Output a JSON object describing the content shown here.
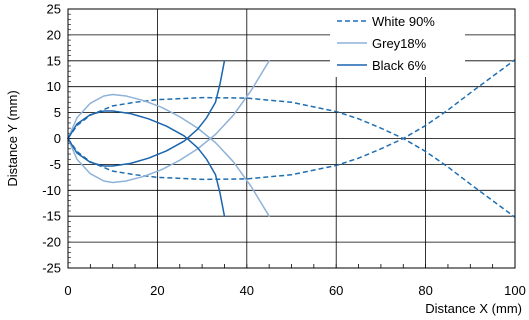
{
  "chart_data": {
    "type": "line",
    "xlabel": "Distance X (mm)",
    "ylabel": "Distance Y (mm)",
    "xlim": [
      0,
      100
    ],
    "ylim": [
      -25,
      25
    ],
    "xticks": [
      0,
      20,
      40,
      60,
      80,
      100
    ],
    "yticks": [
      -25,
      -20,
      -15,
      -10,
      -5,
      0,
      5,
      10,
      15,
      20,
      25
    ],
    "grid": true,
    "legend_position": "top-right",
    "colors": {
      "white": "#1f6fb2",
      "grey": "#8fb3d8",
      "black": "#1a65ad"
    },
    "series": [
      {
        "name": "White 90%",
        "key": "white",
        "style": "dashed",
        "segments": [
          {
            "x": [
              0,
              2,
              5,
              10,
              15,
              20,
              30,
              40,
              50,
              60,
              65,
              70,
              75,
              80,
              85,
              90,
              95,
              100
            ],
            "y": [
              0,
              2.5,
              4.5,
              6.3,
              7.0,
              7.5,
              7.9,
              7.8,
              7.0,
              5.2,
              3.8,
              2.0,
              0,
              -2.5,
              -5.5,
              -8.8,
              -12.0,
              -15.2
            ]
          },
          {
            "x": [
              0,
              2,
              5,
              10,
              15,
              20,
              30,
              40,
              50,
              60,
              65,
              70,
              75,
              80,
              85,
              90,
              95,
              100
            ],
            "y": [
              0,
              -2.5,
              -4.5,
              -6.3,
              -7.0,
              -7.5,
              -7.9,
              -7.8,
              -7.0,
              -5.2,
              -3.8,
              -2.0,
              0,
              2.5,
              5.5,
              8.8,
              12.0,
              15.2
            ]
          }
        ]
      },
      {
        "name": "Grey18%",
        "key": "grey",
        "style": "solid",
        "segments": [
          {
            "x": [
              0,
              2,
              5,
              8,
              10,
              13,
              17,
              21,
              25,
              29,
              33,
              37,
              41,
              45
            ],
            "y": [
              0,
              4.0,
              6.8,
              8.2,
              8.5,
              8.2,
              7.3,
              6.0,
              4.2,
              2.0,
              -0.8,
              -4.5,
              -9.3,
              -15.0
            ]
          },
          {
            "x": [
              0,
              2,
              5,
              8,
              10,
              13,
              17,
              21,
              25,
              29,
              33,
              37,
              41,
              45
            ],
            "y": [
              0,
              -4.0,
              -6.8,
              -8.2,
              -8.5,
              -8.2,
              -7.3,
              -6.0,
              -4.2,
              -2.0,
              0.8,
              4.5,
              9.3,
              15.0
            ]
          }
        ]
      },
      {
        "name": "Black 6%",
        "key": "black",
        "style": "solid",
        "segments": [
          {
            "x": [
              0,
              2,
              5,
              8,
              10,
              14,
              18,
              22,
              26,
              29,
              31,
              33,
              34,
              35
            ],
            "y": [
              0,
              2.8,
              4.6,
              5.3,
              5.3,
              4.8,
              3.8,
              2.4,
              0.5,
              -1.8,
              -4.0,
              -7.0,
              -10.5,
              -15.0
            ]
          },
          {
            "x": [
              0,
              2,
              5,
              8,
              10,
              14,
              18,
              22,
              26,
              29,
              31,
              33,
              34,
              35
            ],
            "y": [
              0,
              -2.8,
              -4.6,
              -5.3,
              -5.3,
              -4.8,
              -3.8,
              -2.4,
              -0.5,
              1.8,
              4.0,
              7.0,
              10.5,
              15.0
            ]
          }
        ]
      }
    ]
  }
}
